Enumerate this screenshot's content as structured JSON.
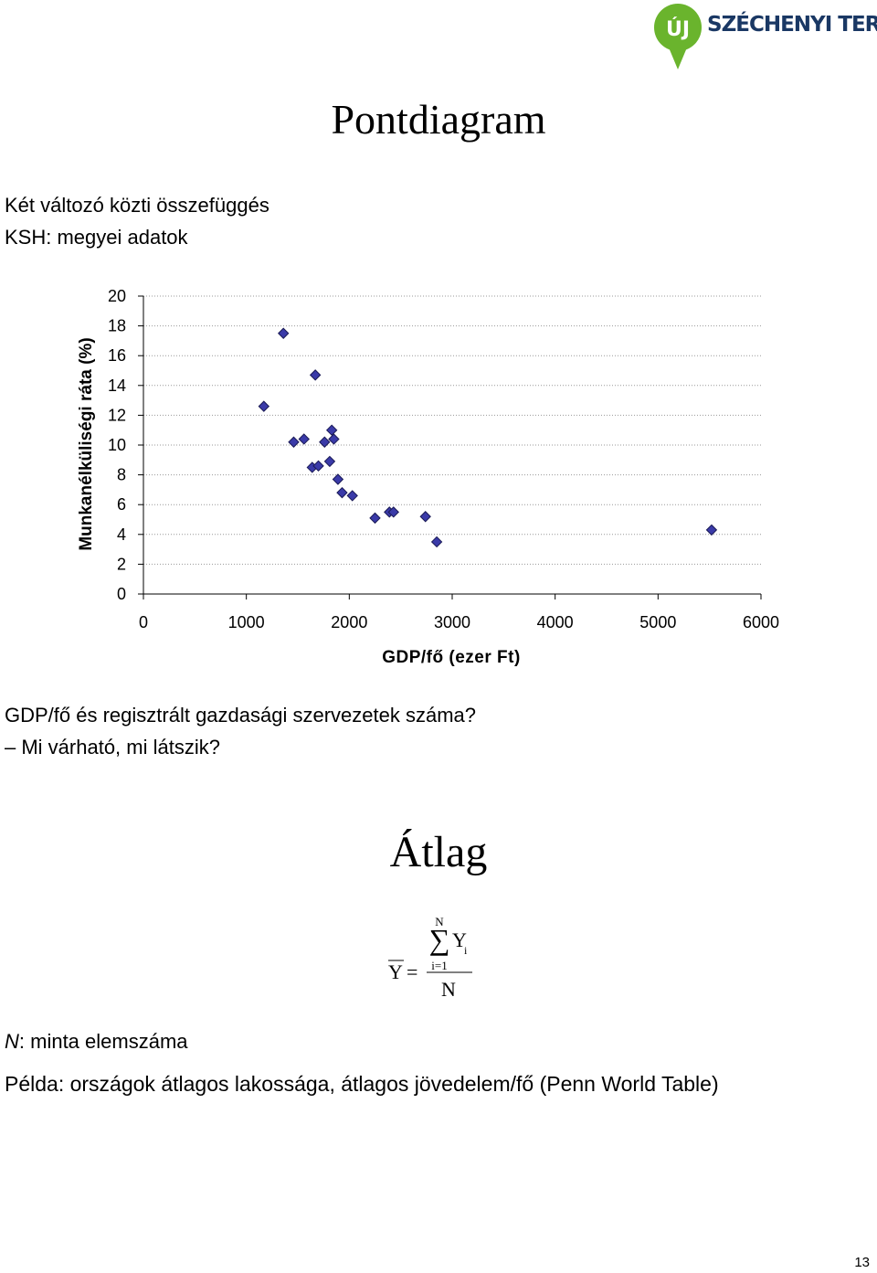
{
  "logo": {
    "text": "SZÉCHENYI TERV",
    "badge": "ÚJ",
    "green": "#6ab42d",
    "navy": "#1a3864"
  },
  "title": "Pontdiagram",
  "intro": {
    "line1": "Két változó közti összefüggés",
    "line2": "KSH: megyei adatok"
  },
  "chart_data": {
    "type": "scatter",
    "xlabel": "GDP/fő (ezer Ft)",
    "ylabel": "Munkanélküliségi ráta (%)",
    "xlim": [
      0,
      6000
    ],
    "ylim": [
      0,
      20
    ],
    "x_ticks": [
      "0",
      "1000",
      "2000",
      "3000",
      "4000",
      "5000",
      "6000"
    ],
    "y_ticks": [
      "0",
      "2",
      "4",
      "6",
      "8",
      "10",
      "12",
      "14",
      "16",
      "18",
      "20"
    ],
    "grid": "horizontal dotted",
    "marker": "diamond",
    "marker_color": "#2b2b8c",
    "points": [
      {
        "x": 1170,
        "y": 12.6
      },
      {
        "x": 1360,
        "y": 17.5
      },
      {
        "x": 1460,
        "y": 10.2
      },
      {
        "x": 1560,
        "y": 10.4
      },
      {
        "x": 1640,
        "y": 8.5
      },
      {
        "x": 1670,
        "y": 14.7
      },
      {
        "x": 1700,
        "y": 8.6
      },
      {
        "x": 1760,
        "y": 10.2
      },
      {
        "x": 1810,
        "y": 8.9
      },
      {
        "x": 1830,
        "y": 11.0
      },
      {
        "x": 1850,
        "y": 10.4
      },
      {
        "x": 1890,
        "y": 7.7
      },
      {
        "x": 1930,
        "y": 6.8
      },
      {
        "x": 2030,
        "y": 6.6
      },
      {
        "x": 2250,
        "y": 5.1
      },
      {
        "x": 2390,
        "y": 5.5
      },
      {
        "x": 2430,
        "y": 5.5
      },
      {
        "x": 2740,
        "y": 5.2
      },
      {
        "x": 2850,
        "y": 3.5
      },
      {
        "x": 5520,
        "y": 4.3
      }
    ]
  },
  "question": {
    "line1": "GDP/fő és regisztrált gazdasági szervezetek száma?",
    "line2": "– Mi várható, mi látszik?"
  },
  "title2": "Átlag",
  "formula": {
    "lhs": "Y",
    "equals": "=",
    "sum_upper": "N",
    "sum_lower": "i=1",
    "sigma": "∑",
    "term": "Y",
    "subscript": "i",
    "denominator": "N"
  },
  "note": {
    "var": "N",
    "text": ": minta elemszáma"
  },
  "example": "Példa: országok átlagos lakossága, átlagos jövedelem/fő (Penn World Table)",
  "page_number": "13"
}
